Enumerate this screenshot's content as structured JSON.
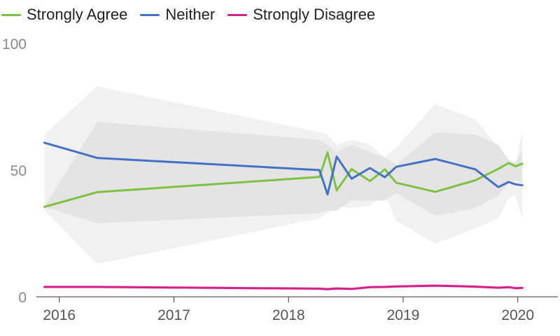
{
  "chart_data": {
    "type": "line",
    "title": "",
    "xlabel": "",
    "ylabel": "",
    "ylim": [
      0,
      100
    ],
    "y_ticks": [
      "0",
      "50",
      "100"
    ],
    "x_ticks": [
      {
        "label": "2016",
        "x": 2016.0
      },
      {
        "label": "2017",
        "x": 2017.0
      },
      {
        "label": "2018",
        "x": 2018.0
      },
      {
        "label": "2019",
        "x": 2019.0
      },
      {
        "label": "2020",
        "x": 2020.0
      }
    ],
    "xlim": [
      2015.8,
      2020.35
    ],
    "grid": false,
    "legend": "top-left",
    "series": [
      {
        "name": "Strongly Agree",
        "color": "#7dc242",
        "x": [
          2015.87,
          2016.33,
          2018.27,
          2018.34,
          2018.42,
          2018.55,
          2018.71,
          2018.84,
          2018.94,
          2019.28,
          2019.63,
          2019.83,
          2019.92,
          2019.98,
          2020.04
        ],
        "values": [
          35.5,
          41.3,
          47.3,
          57.0,
          42.0,
          50.4,
          45.7,
          50.3,
          45.0,
          41.4,
          46.0,
          50.5,
          52.8,
          51.5,
          52.5
        ],
        "band_inner": [
          [
            null,
            null
          ],
          [
            29,
            69
          ],
          [
            33,
            62
          ],
          [
            34,
            60
          ],
          [
            34,
            57
          ],
          [
            38,
            60
          ],
          [
            38,
            57
          ],
          [
            38,
            55
          ],
          [
            41,
            52
          ],
          [
            32,
            65
          ],
          [
            35,
            64
          ],
          [
            40,
            60
          ],
          [
            45,
            54
          ],
          [
            46,
            53
          ],
          [
            45,
            58
          ]
        ]
      },
      {
        "name": "Neither",
        "color": "#4372c4",
        "x": [
          2015.87,
          2016.33,
          2018.27,
          2018.34,
          2018.42,
          2018.55,
          2018.71,
          2018.84,
          2018.94,
          2019.28,
          2019.63,
          2019.83,
          2019.92,
          2019.98,
          2020.04
        ],
        "values": [
          60.8,
          54.8,
          50.0,
          40.4,
          55.3,
          46.6,
          50.8,
          47.2,
          51.3,
          54.4,
          50.3,
          43.3,
          45.3,
          44.4,
          44.0
        ],
        "band_outer": [
          [
            34,
            64
          ],
          [
            13,
            83
          ],
          [
            31,
            65
          ],
          [
            33,
            64
          ],
          [
            36,
            60
          ],
          [
            35,
            62
          ],
          [
            36,
            60
          ],
          [
            40,
            55
          ],
          [
            30,
            59
          ],
          [
            21,
            76
          ],
          [
            27,
            70
          ],
          [
            31,
            59
          ],
          [
            39,
            52
          ],
          [
            40,
            51
          ],
          [
            31,
            66
          ]
        ]
      },
      {
        "name": "Strongly Disagree",
        "color": "#d4208a",
        "x": [
          2015.87,
          2016.33,
          2018.27,
          2018.34,
          2018.42,
          2018.55,
          2018.71,
          2018.84,
          2018.94,
          2019.28,
          2019.63,
          2019.83,
          2019.92,
          2019.98,
          2020.04
        ],
        "values": [
          3.9,
          3.9,
          3.2,
          3.0,
          3.3,
          3.1,
          3.8,
          3.9,
          4.1,
          4.4,
          4.0,
          3.6,
          3.8,
          3.4,
          3.5
        ]
      }
    ]
  }
}
